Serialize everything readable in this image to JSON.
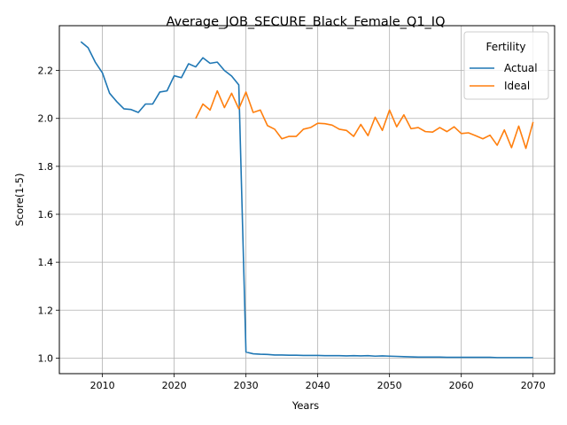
{
  "chart_data": {
    "type": "line",
    "title": "Average_JOB_SECURE_Black_Female_Q1_IQ",
    "xlabel": "Years",
    "ylabel": "Score(1-5)",
    "xlim": [
      2004,
      2073
    ],
    "ylim": [
      0.935,
      2.387
    ],
    "xticks": [
      2010,
      2020,
      2030,
      2040,
      2050,
      2060,
      2070
    ],
    "yticks": [
      1.0,
      1.2,
      1.4,
      1.6,
      1.8,
      2.0,
      2.2
    ],
    "ytick_labels": [
      "1.0",
      "1.2",
      "1.4",
      "1.6",
      "1.8",
      "2.0",
      "2.2"
    ],
    "grid": true,
    "legend": {
      "title": "Fertility",
      "position": "top-right"
    },
    "series": [
      {
        "name": "Actual",
        "color": "#1f77b4",
        "x": [
          2007,
          2008,
          2009,
          2010,
          2011,
          2012,
          2013,
          2014,
          2015,
          2016,
          2017,
          2018,
          2019,
          2020,
          2021,
          2022,
          2023,
          2024,
          2025,
          2026,
          2027,
          2028,
          2029,
          2030,
          2031,
          2032,
          2033,
          2034,
          2035,
          2036,
          2037,
          2038,
          2039,
          2040,
          2041,
          2042,
          2043,
          2044,
          2045,
          2046,
          2047,
          2048,
          2049,
          2050,
          2051,
          2052,
          2053,
          2054,
          2055,
          2056,
          2057,
          2058,
          2059,
          2060,
          2061,
          2062,
          2063,
          2064,
          2065,
          2066,
          2067,
          2068,
          2069,
          2070
        ],
        "y": [
          2.32,
          2.295,
          2.235,
          2.19,
          2.105,
          2.07,
          2.04,
          2.037,
          2.025,
          2.06,
          2.06,
          2.11,
          2.115,
          2.178,
          2.17,
          2.228,
          2.215,
          2.253,
          2.23,
          2.235,
          2.2,
          2.177,
          2.14,
          1.025,
          1.018,
          1.016,
          1.015,
          1.013,
          1.013,
          1.012,
          1.012,
          1.011,
          1.011,
          1.011,
          1.01,
          1.01,
          1.01,
          1.009,
          1.01,
          1.009,
          1.01,
          1.008,
          1.009,
          1.008,
          1.007,
          1.006,
          1.005,
          1.004,
          1.004,
          1.004,
          1.004,
          1.003,
          1.003,
          1.003,
          1.003,
          1.003,
          1.003,
          1.003,
          1.002,
          1.002,
          1.002,
          1.002,
          1.002,
          1.002
        ]
      },
      {
        "name": "Ideal",
        "color": "#ff7f0e",
        "x": [
          2023,
          2024,
          2025,
          2026,
          2027,
          2028,
          2029,
          2030,
          2031,
          2032,
          2033,
          2034,
          2035,
          2036,
          2037,
          2038,
          2039,
          2040,
          2041,
          2042,
          2043,
          2044,
          2045,
          2046,
          2047,
          2048,
          2049,
          2050,
          2051,
          2052,
          2053,
          2054,
          2055,
          2056,
          2057,
          2058,
          2059,
          2060,
          2061,
          2062,
          2063,
          2064,
          2065,
          2066,
          2067,
          2068,
          2069,
          2070
        ],
        "y": [
          2.0,
          2.06,
          2.035,
          2.115,
          2.045,
          2.105,
          2.04,
          2.11,
          2.025,
          2.035,
          1.97,
          1.955,
          1.915,
          1.925,
          1.925,
          1.955,
          1.962,
          1.98,
          1.978,
          1.972,
          1.955,
          1.95,
          1.925,
          1.975,
          1.928,
          2.005,
          1.95,
          2.035,
          1.965,
          2.015,
          1.957,
          1.962,
          1.945,
          1.943,
          1.962,
          1.945,
          1.965,
          1.937,
          1.94,
          1.928,
          1.915,
          1.93,
          1.888,
          1.952,
          1.878,
          1.968,
          1.875,
          1.985
        ]
      }
    ]
  }
}
